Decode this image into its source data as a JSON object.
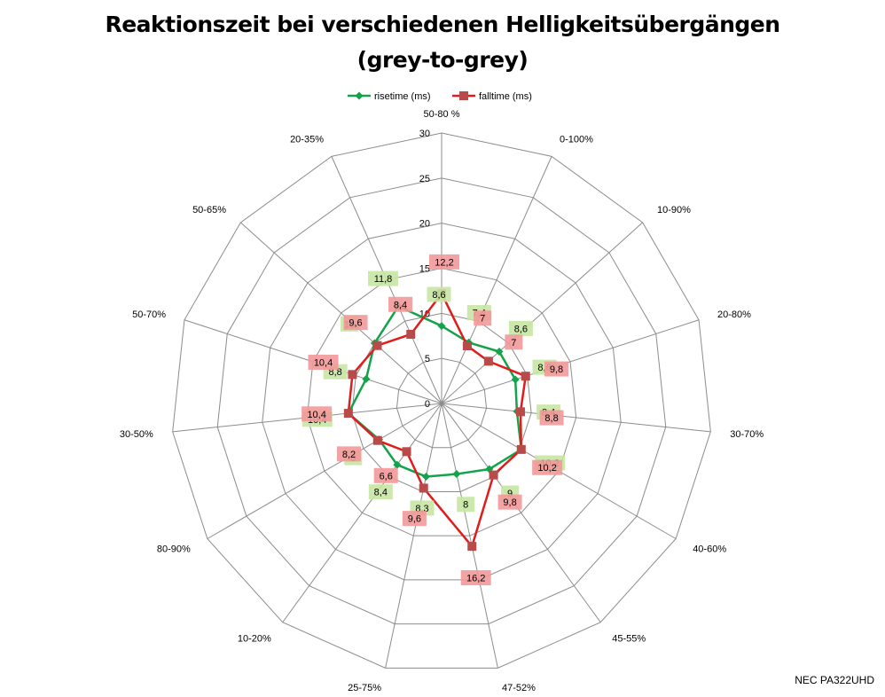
{
  "chart_data": {
    "type": "radar",
    "title": [
      "Reaktionszeit bei verschiedenen Helligkeitsübergängen",
      "(grey-to-grey)"
    ],
    "categories": [
      "50-80 %",
      "0-100%",
      "10-90%",
      "20-80%",
      "30-70%",
      "40-60%",
      "45-55%",
      "47-52%",
      "25-75%",
      "10-20%",
      "80-90%",
      "30-50%",
      "50-70%",
      "50-65%",
      "20-35%"
    ],
    "rlim": [
      0,
      30
    ],
    "ticks": [
      0,
      5,
      10,
      15,
      20,
      25,
      30
    ],
    "tick_labels": [
      "0",
      "5",
      "10",
      "15",
      "20",
      "25",
      "30"
    ],
    "grid": true,
    "legend_position": "top",
    "series": [
      {
        "name": "risetime (ms)",
        "color": "#13a34a",
        "label_bg": "#c6e6a3",
        "values": [
          8.6,
          7.4,
          8.6,
          8.6,
          8.4,
          10.2,
          9,
          8,
          8.3,
          8.4,
          8,
          10.4,
          8.8,
          10,
          11.8
        ],
        "labels": [
          "8,6",
          "7,4",
          "8,6",
          "8,6",
          "8,4",
          "10,2",
          "9",
          "8",
          "8,3",
          "8,4",
          "8",
          "10,4",
          "8,8",
          "10",
          "11,8"
        ]
      },
      {
        "name": "falltime (ms)",
        "color": "#e01c1c",
        "label_bg": "#f29999",
        "values": [
          12.2,
          7,
          7,
          9.8,
          8.8,
          10.2,
          9.8,
          16.2,
          9.6,
          6.6,
          8.2,
          10.4,
          10.4,
          9.6,
          8.4
        ],
        "labels": [
          "12,2",
          "7",
          "7",
          "9,8",
          "8,8",
          "10,2",
          "9,8",
          "16,2",
          "9,6",
          "6,6",
          "8,2",
          "10,4",
          "10,4",
          "9,6",
          "8,4"
        ]
      }
    ]
  },
  "footer": {
    "model": "NEC PA322UHD"
  }
}
